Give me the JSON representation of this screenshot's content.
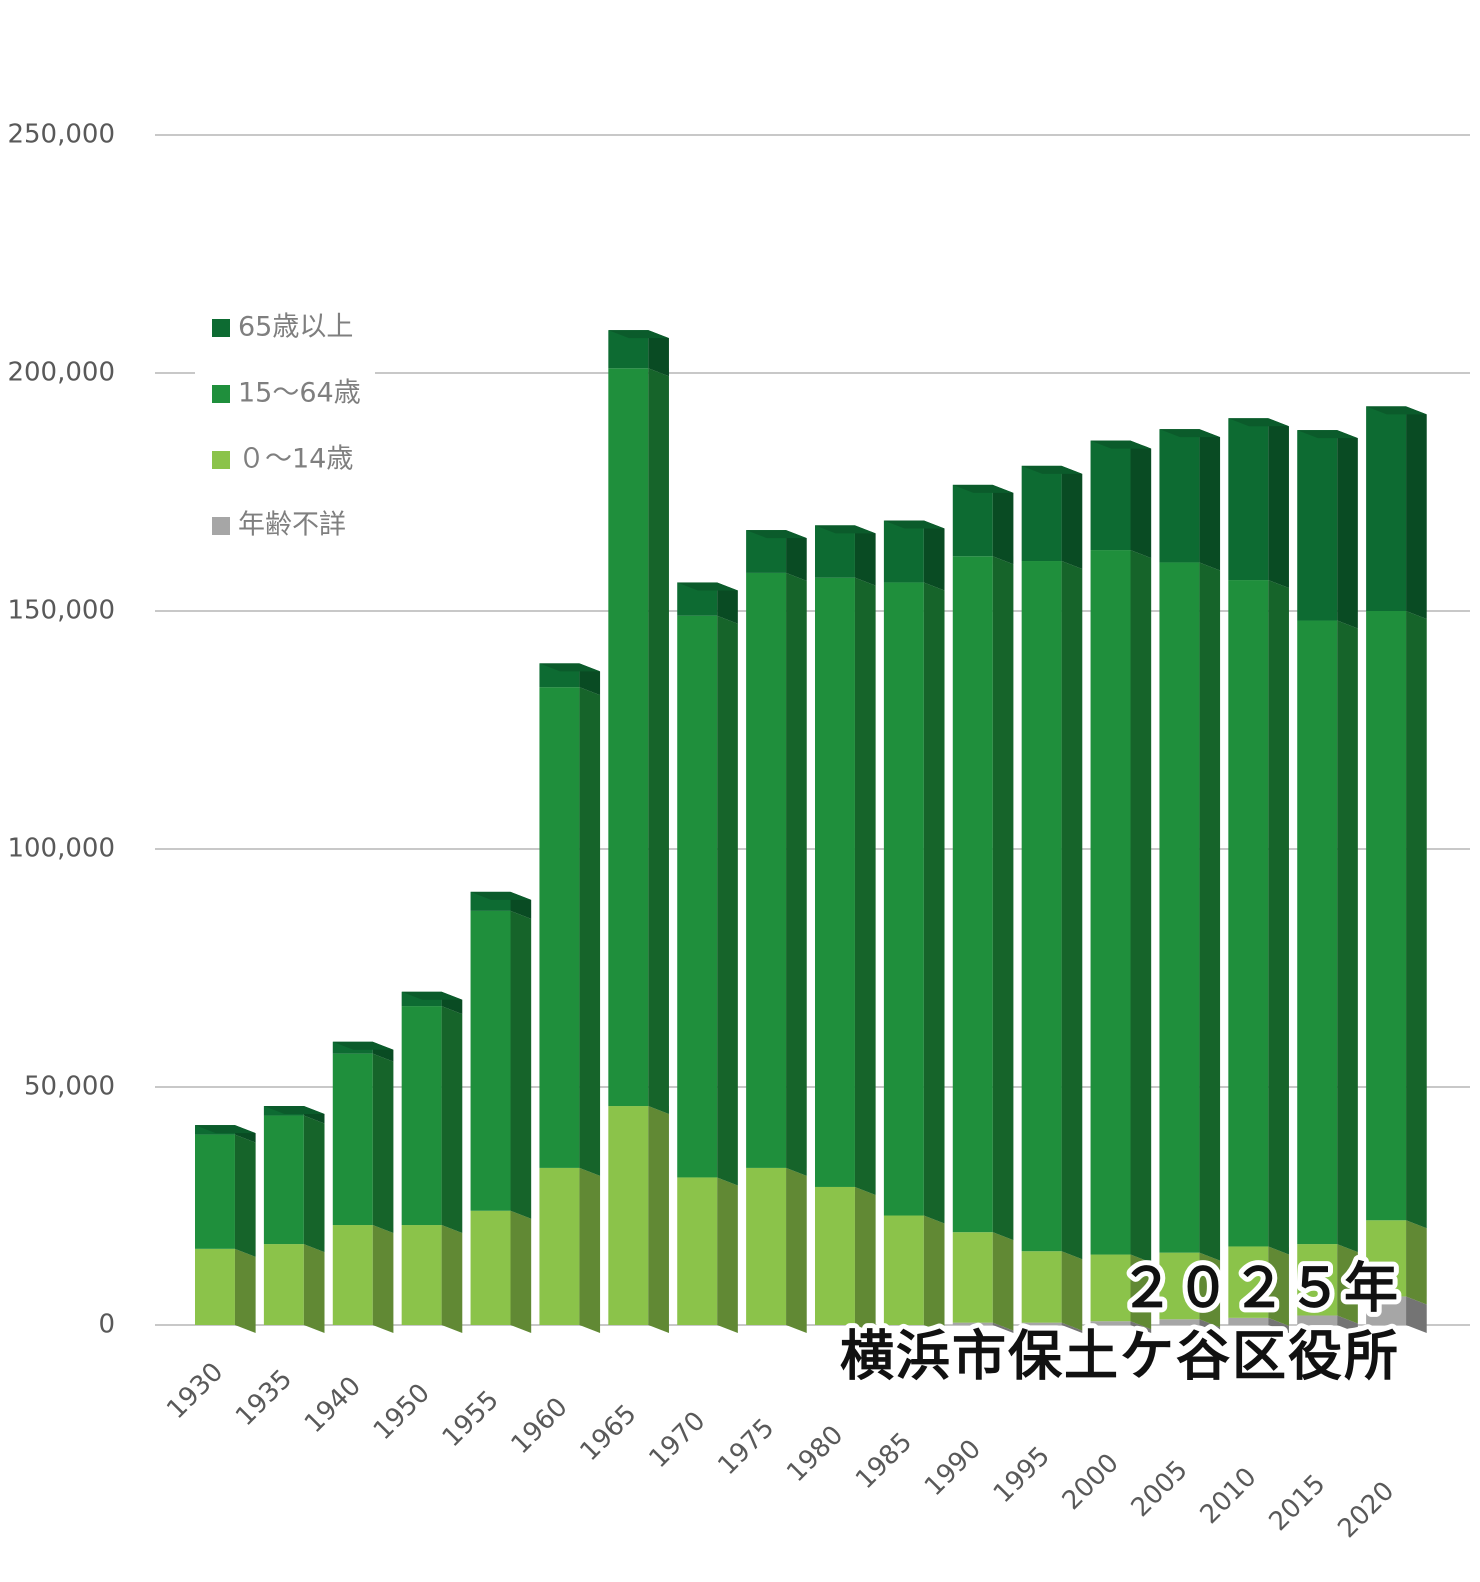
{
  "chart_data": {
    "type": "stacked_bar",
    "categories": [
      "1930",
      "1935",
      "1940",
      "1950",
      "1955",
      "1960",
      "1965",
      "1970",
      "1975",
      "1980",
      "1985",
      "1990",
      "1995",
      "2000",
      "2005",
      "2010",
      "2015",
      "2020"
    ],
    "series": [
      {
        "name": "65歳以上",
        "color": "#0d6b32",
        "values": [
          2000,
          2000,
          2500,
          3000,
          4000,
          5000,
          8000,
          7000,
          9000,
          11000,
          13000,
          15000,
          20000,
          23000,
          28000,
          34000,
          40000,
          43000
        ]
      },
      {
        "name": "15～64歳",
        "color": "#1f8f3c",
        "values": [
          24000,
          27000,
          36000,
          46000,
          63000,
          101000,
          155000,
          118000,
          125000,
          128000,
          133000,
          142000,
          145000,
          148000,
          145000,
          140000,
          131000,
          128000
        ]
      },
      {
        "name": "０～14歳",
        "color": "#8bc34a",
        "values": [
          16000,
          17000,
          21000,
          21000,
          24000,
          33000,
          46000,
          31000,
          33000,
          29000,
          23000,
          19000,
          15000,
          14000,
          14000,
          15000,
          15000,
          16000
        ]
      },
      {
        "name": "年齢不詳",
        "color": "#a6a6a6",
        "values": [
          0,
          0,
          0,
          0,
          0,
          0,
          0,
          0,
          0,
          0,
          0,
          500,
          500,
          800,
          1200,
          1500,
          2000,
          6000
        ]
      }
    ],
    "ylim": [
      0,
      250000
    ],
    "yticks": [
      0,
      {
        "value": 50000,
        "label": "50,000"
      },
      {
        "value": 100000,
        "label": "100,000"
      },
      {
        "value": 150000,
        "label": "150,000"
      },
      {
        "value": 200000,
        "label": "200,000"
      },
      {
        "value": 250000,
        "label": "250,000"
      }
    ],
    "grid": true,
    "legend": "upper left",
    "watermark": [
      "２０２５年",
      "横浜市保土ケ谷区役所"
    ]
  }
}
